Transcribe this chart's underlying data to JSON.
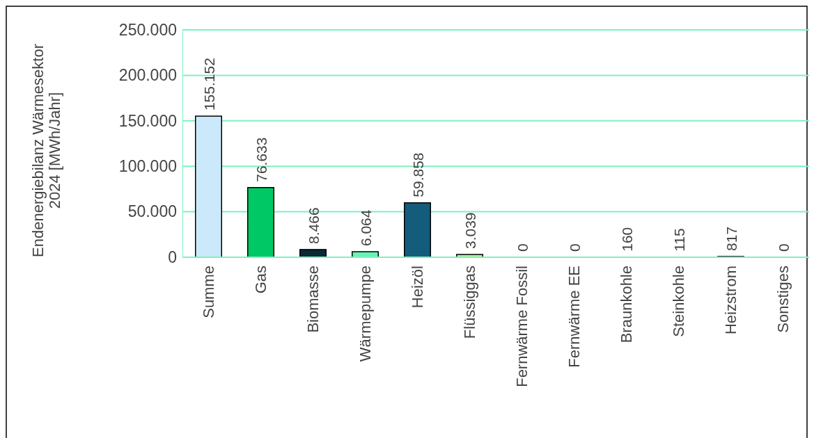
{
  "chart_data": {
    "type": "bar",
    "ylabel": "Endenergiebilanz Wärmesektor\n2024 [MWh/Jahr]",
    "categories": [
      "Summe",
      "Gas",
      "Biomasse",
      "Wärmepumpe",
      "Heizöl",
      "Flüssiggas",
      "Fernwärme Fossil",
      "Fernwärme EE",
      "Braunkohle",
      "Steinkohle",
      "Heizstrom",
      "Sonstiges"
    ],
    "values": [
      155152,
      76633,
      8466,
      6064,
      59858,
      3039,
      0,
      0,
      160,
      115,
      817,
      0
    ],
    "colors": [
      "#cce9fb",
      "#00c864",
      "#0a2a36",
      "#66f5b4",
      "#135c7c",
      "#b6f294",
      "#7fb0c8",
      "#40d090",
      "#3a3a3a",
      "#2a2a2a",
      "#1a4a5a",
      "#999999"
    ],
    "ylim": [
      0,
      250000
    ],
    "yticks": [
      0,
      {
        "value": 50000,
        "label": "50.000"
      },
      {
        "value": 100000,
        "label": "100.000"
      },
      {
        "value": 150000,
        "label": "150.000"
      },
      {
        "value": 200000,
        "label": "200.000"
      },
      {
        "value": 250000,
        "label": "250.000"
      }
    ],
    "value_labels": [
      "155.152",
      "76.633",
      "8.466",
      "6.064",
      "59.858",
      "3.039",
      "0",
      "0",
      "160",
      "115",
      "817",
      "0"
    ],
    "grid": "y"
  }
}
